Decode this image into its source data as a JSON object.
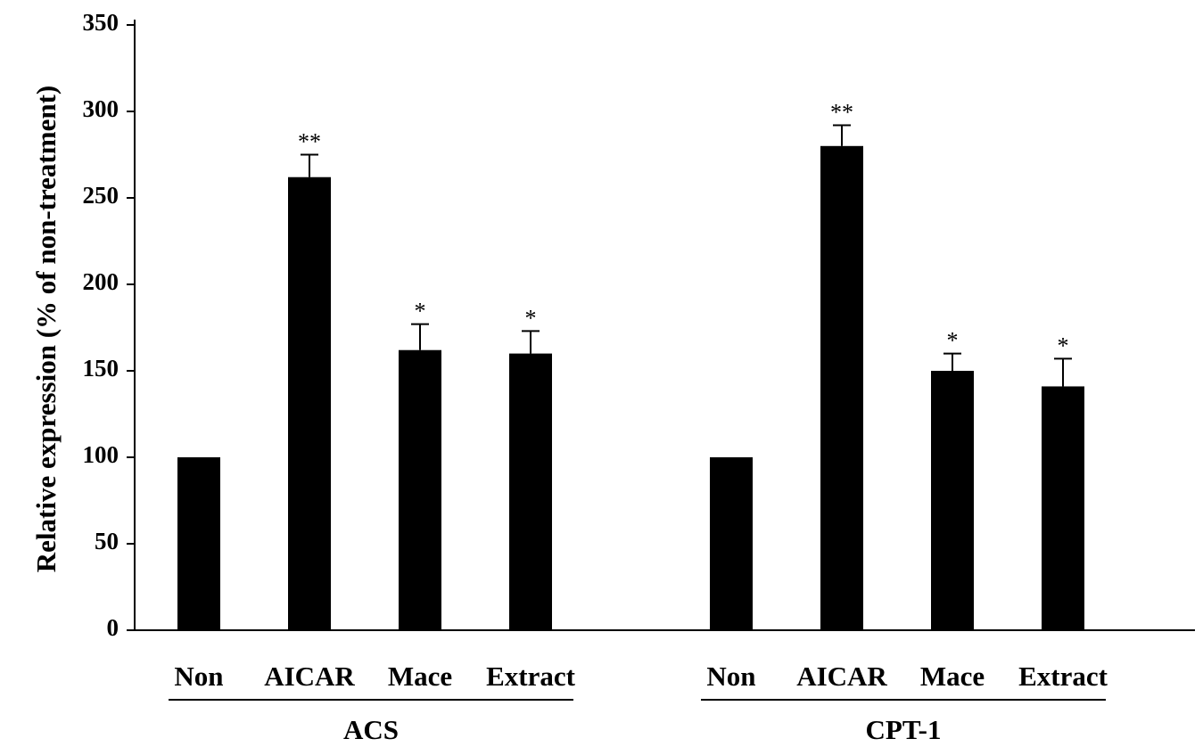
{
  "chart_data": {
    "type": "bar",
    "ylabel": "Relative expression (% of non-treatment)",
    "xlabel": "",
    "ylim": [
      0,
      350
    ],
    "yticks": [
      0,
      50,
      100,
      150,
      200,
      250,
      300,
      350
    ],
    "grid": false,
    "legend": "none",
    "groups": [
      {
        "name": "ACS",
        "categories": [
          "Non",
          "AICAR",
          "Mace",
          "Extract"
        ],
        "values": [
          100,
          262,
          162,
          160
        ],
        "errors": [
          0,
          13,
          15,
          13
        ],
        "significance": [
          "",
          "**",
          "*",
          "*"
        ]
      },
      {
        "name": "CPT-1",
        "categories": [
          "Non",
          "AICAR",
          "Mace",
          "Extract"
        ],
        "values": [
          100,
          280,
          150,
          141
        ],
        "errors": [
          0,
          12,
          10,
          16
        ],
        "significance": [
          "",
          "**",
          "*",
          "*"
        ]
      }
    ]
  },
  "colors": {
    "bar": "#000000",
    "axis": "#000000",
    "background": "#ffffff"
  }
}
